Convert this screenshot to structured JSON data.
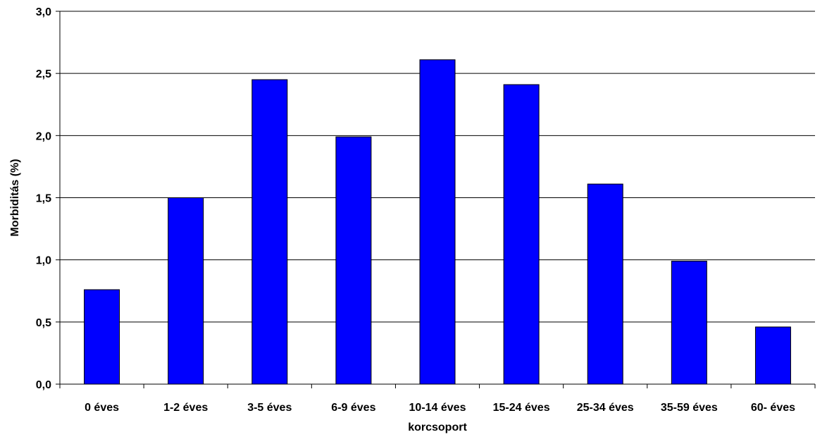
{
  "chart_data": {
    "type": "bar",
    "categories": [
      "0 éves",
      "1-2 éves",
      "3-5 éves",
      "6-9 éves",
      "10-14 éves",
      "15-24 éves",
      "25-34 éves",
      "35-59 éves",
      "60- éves"
    ],
    "series": [
      {
        "values": [
          0.76,
          1.5,
          2.45,
          1.99,
          2.61,
          2.41,
          1.61,
          0.99,
          0.46
        ]
      }
    ],
    "title": "",
    "xlabel": "korcsoport",
    "ylabel": "Morbiditás (%)",
    "ylim": [
      0,
      3.0
    ],
    "yticks": [
      "0,0",
      "0,5",
      "1,0",
      "1,5",
      "2,0",
      "2,5",
      "3,0"
    ],
    "ytick_values": [
      0,
      0.5,
      1.0,
      1.5,
      2.0,
      2.5,
      3.0
    ],
    "grid": true,
    "legend": "none",
    "colors": {
      "bar": "#0000ff",
      "bar_edge": "#000000",
      "grid": "#000000",
      "axis": "#000000"
    }
  }
}
